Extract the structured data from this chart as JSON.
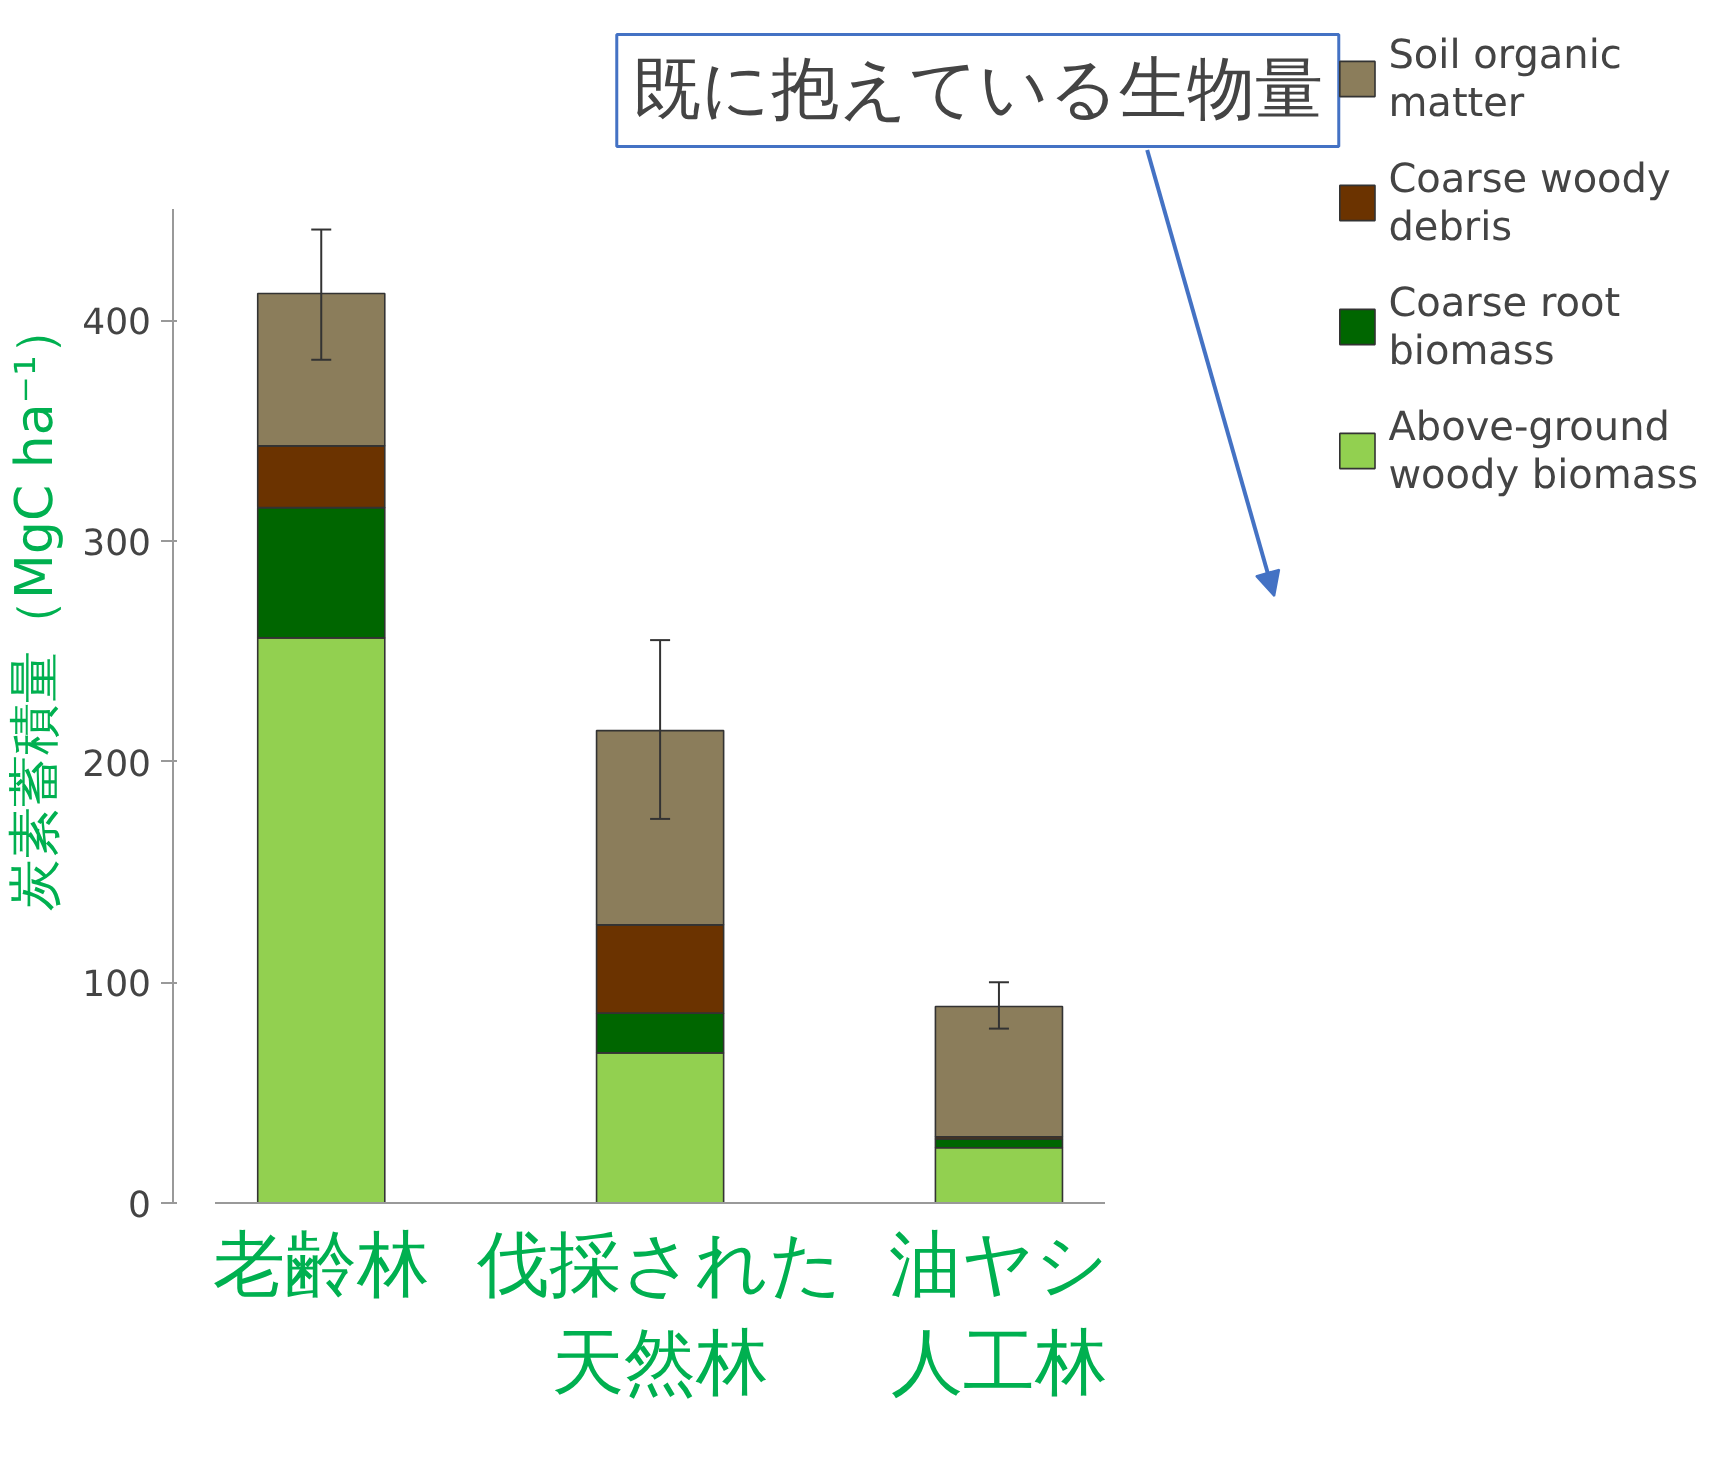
{
  "chart_data": {
    "type": "bar",
    "stacked": true,
    "ylabel": "炭素蓄積量（MgC ha⁻¹）",
    "categories": [
      "老齢林",
      "伐採された天然林",
      "油ヤシ人工林"
    ],
    "series": [
      {
        "name": "Above-ground woody biomass",
        "color": "#92d050",
        "values": [
          256,
          68,
          25
        ]
      },
      {
        "name": "Coarse root biomass",
        "color": "#006600",
        "values": [
          59,
          18,
          4
        ]
      },
      {
        "name": "Coarse woody debris",
        "color": "#6b3300",
        "values": [
          28,
          40,
          1
        ]
      },
      {
        "name": "Soil organic matter",
        "color": "#8b7d5b",
        "values": [
          69,
          88,
          59
        ],
        "errors": [
          [
            382,
            441
          ],
          [
            174,
            255
          ],
          [
            79,
            100
          ]
        ]
      }
    ],
    "ylim": [
      0,
      450
    ],
    "yticks": [
      0,
      100,
      200,
      300,
      400
    ],
    "grid": false,
    "legend": "right",
    "annotations": [
      "既に抱えている生物量"
    ]
  }
}
